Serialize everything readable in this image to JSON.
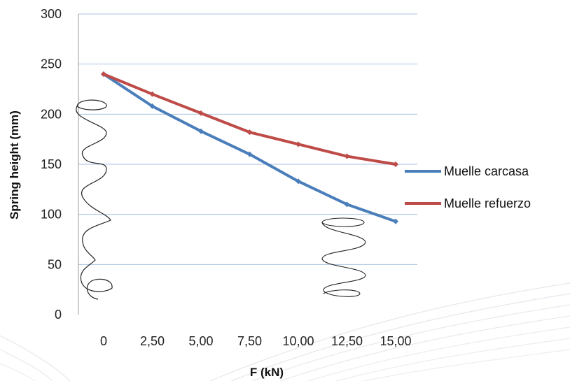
{
  "chart_data": {
    "type": "line",
    "xlabel": "F (kN)",
    "ylabel": "Spring height (mm)",
    "categories": [
      "0",
      "2,50",
      "5,00",
      "7,50",
      "10,00",
      "12,50",
      "15,00"
    ],
    "x": [
      0,
      2.5,
      5,
      7.5,
      10,
      12.5,
      15
    ],
    "yticks": [
      "0",
      "50",
      "100",
      "150",
      "200",
      "250",
      "300"
    ],
    "ylim": [
      0,
      300
    ],
    "grid": true,
    "legend_position": "right",
    "series": [
      {
        "name": "Muelle carcasa",
        "color": "#4a7ebb",
        "values": [
          240,
          208,
          183,
          160,
          133,
          110,
          93
        ]
      },
      {
        "name": "Muelle refuerzo",
        "color": "#be4b48",
        "values": [
          240,
          220,
          201,
          182,
          170,
          158,
          150
        ]
      }
    ]
  }
}
